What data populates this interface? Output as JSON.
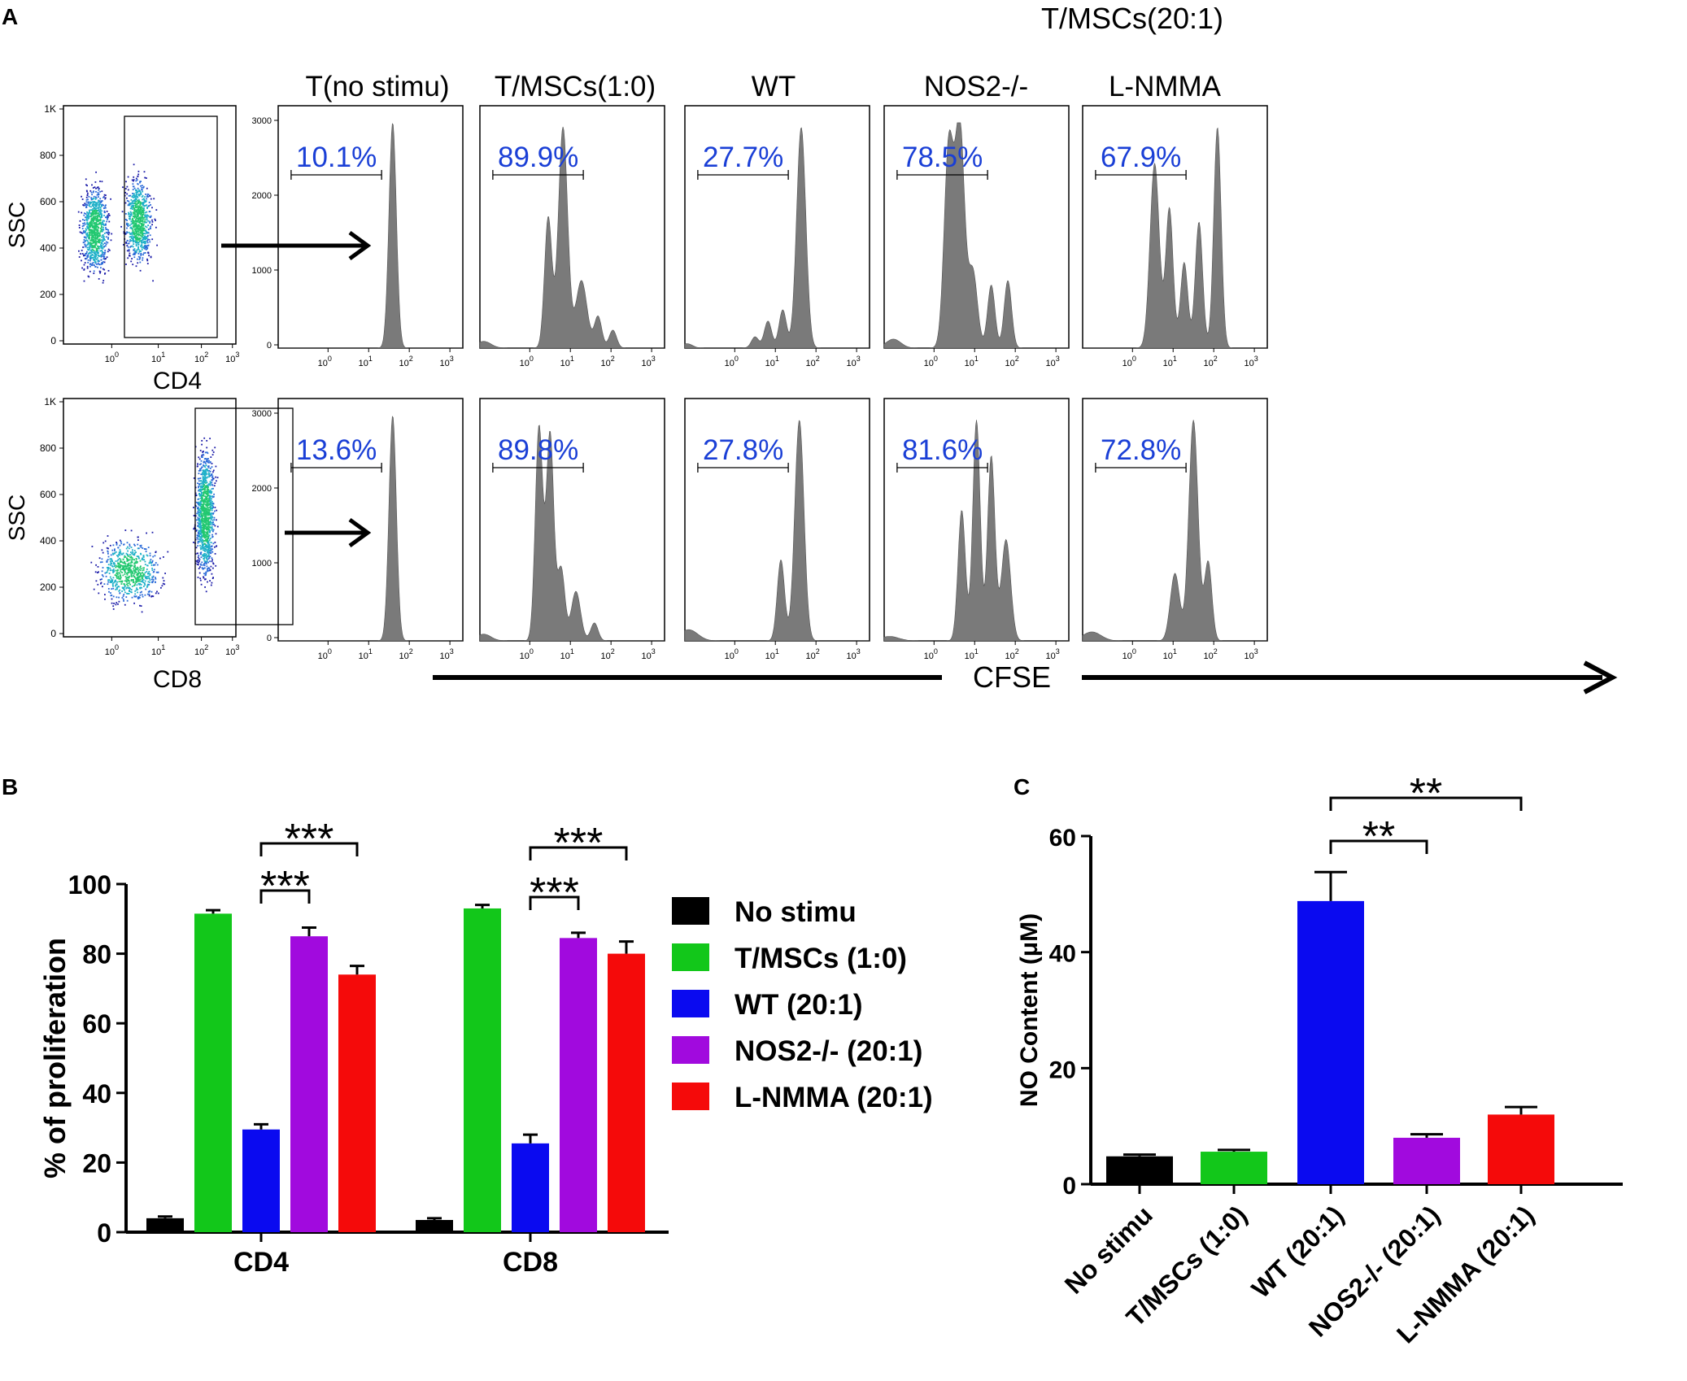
{
  "panel_labels": {
    "a": "A",
    "b": "B",
    "c": "C"
  },
  "flow": {
    "group_header": "T/MSCs(20:1)",
    "columns": [
      "T(no stimu)",
      "T/MSCs(1:0)",
      "WT",
      "NOS2-/-",
      "L-NMMA"
    ],
    "rows": [
      "CD4",
      "CD8"
    ],
    "percentages": [
      [
        "10.1%",
        "89.9%",
        "27.7%",
        "78.5%",
        "67.9%"
      ],
      [
        "13.6%",
        "89.8%",
        "27.8%",
        "81.6%",
        "72.8%"
      ]
    ],
    "scatter_ylabel": "SSC",
    "scatter_xlabels": [
      "CD4",
      "CD8"
    ],
    "scatter_yticks": [
      "0",
      "200",
      "400",
      "600",
      "800",
      "1K"
    ],
    "hist_yticks": [
      "0",
      "1000",
      "2000",
      "3000"
    ],
    "xticks": [
      "10",
      "10",
      "10",
      "10"
    ],
    "xtick_exps": [
      "0",
      "1",
      "2",
      "3"
    ],
    "axis_label": "CFSE",
    "colors": {
      "hist": "#7a7a7a",
      "pct": "#1a3fd6"
    }
  },
  "chart_data": [
    {
      "type": "bar",
      "panel": "B",
      "ylabel": "% of proliferation",
      "categories": [
        "CD4",
        "CD8"
      ],
      "ylim": [
        0,
        100
      ],
      "yticks": [
        "0",
        "20",
        "40",
        "60",
        "80",
        "100"
      ],
      "series": [
        {
          "name": "No stimu",
          "color": "#000000",
          "values": [
            4.0,
            3.5
          ],
          "err": [
            0.5,
            0.5
          ]
        },
        {
          "name": "T/MSCs (1:0)",
          "color": "#12c71a",
          "values": [
            91.5,
            93.0
          ],
          "err": [
            1.0,
            1.0
          ]
        },
        {
          "name": "WT (20:1)",
          "color": "#0a0af0",
          "values": [
            29.5,
            25.5
          ],
          "err": [
            1.5,
            2.5
          ]
        },
        {
          "name": "NOS2-/- (20:1)",
          "color": "#a10ade",
          "values": [
            85.0,
            84.5
          ],
          "err": [
            2.5,
            1.5
          ]
        },
        {
          "name": "L-NMMA (20:1)",
          "color": "#f50a0a",
          "values": [
            74.0,
            80.0
          ],
          "err": [
            2.5,
            3.5
          ]
        }
      ],
      "significance": [
        "***",
        "***",
        "***",
        "***"
      ]
    },
    {
      "type": "bar",
      "panel": "C",
      "ylabel": "NO Content (μM)",
      "categories": [
        "No stimu",
        "T/MSCs (1:0)",
        "WT (20:1)",
        "NOS2-/- (20:1)",
        "L-NMMA (20:1)"
      ],
      "values": [
        4.8,
        5.6,
        48.8,
        8.0,
        12.0
      ],
      "err": [
        0.3,
        0.3,
        5.0,
        0.6,
        1.3
      ],
      "colors": [
        "#000000",
        "#12c71a",
        "#0a0af0",
        "#a10ade",
        "#f50a0a"
      ],
      "ylim": [
        0,
        60
      ],
      "yticks": [
        "0",
        "20",
        "40",
        "60"
      ],
      "significance": [
        "**",
        "**"
      ]
    }
  ]
}
